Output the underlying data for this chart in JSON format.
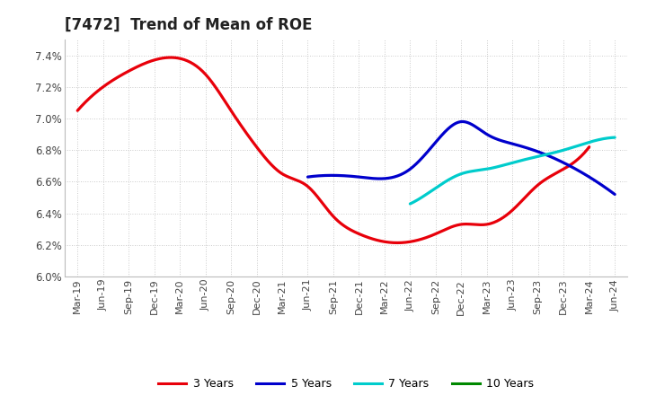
{
  "title": "[7472]  Trend of Mean of ROE",
  "ylim": [
    0.06,
    0.075
  ],
  "yticks": [
    0.06,
    0.062,
    0.064,
    0.066,
    0.068,
    0.07,
    0.072,
    0.074
  ],
  "ytick_labels": [
    "6.0%",
    "6.2%",
    "6.4%",
    "6.6%",
    "6.8%",
    "7.0%",
    "7.2%",
    "7.4%"
  ],
  "x_labels": [
    "Mar-19",
    "Jun-19",
    "Sep-19",
    "Dec-19",
    "Mar-20",
    "Jun-20",
    "Sep-20",
    "Dec-20",
    "Mar-21",
    "Jun-21",
    "Sep-21",
    "Dec-21",
    "Mar-22",
    "Jun-22",
    "Sep-22",
    "Dec-22",
    "Mar-23",
    "Jun-23",
    "Sep-23",
    "Dec-23",
    "Mar-24",
    "Jun-24"
  ],
  "y3": [
    7.05,
    7.2,
    7.3,
    7.37,
    7.38,
    7.28,
    7.05,
    6.82,
    6.65,
    6.57,
    6.38,
    6.27,
    6.22,
    6.22,
    6.27,
    6.33,
    6.33,
    6.42,
    6.58,
    6.68,
    6.82,
    null
  ],
  "y5": [
    null,
    null,
    null,
    null,
    null,
    null,
    null,
    null,
    null,
    6.63,
    6.64,
    6.63,
    6.62,
    6.68,
    6.85,
    6.98,
    6.9,
    6.84,
    6.79,
    6.72,
    6.63,
    6.52
  ],
  "y7": [
    null,
    null,
    null,
    null,
    null,
    null,
    null,
    null,
    null,
    null,
    null,
    null,
    null,
    6.46,
    6.56,
    6.65,
    6.68,
    6.72,
    6.76,
    6.8,
    6.85,
    6.88
  ],
  "y10": [
    null,
    null,
    null,
    null,
    null,
    null,
    null,
    null,
    null,
    null,
    null,
    null,
    null,
    null,
    null,
    null,
    null,
    null,
    null,
    null,
    null,
    null
  ],
  "colors": {
    "3 Years": "#e8000a",
    "5 Years": "#0000cc",
    "7 Years": "#00cccc",
    "10 Years": "#008800"
  },
  "linewidth": 2.3,
  "legend_entries": [
    "3 Years",
    "5 Years",
    "7 Years",
    "10 Years"
  ],
  "background_color": "#ffffff",
  "grid_color": "#bbbbbb",
  "title_fontsize": 12,
  "tick_fontsize": 8.5
}
